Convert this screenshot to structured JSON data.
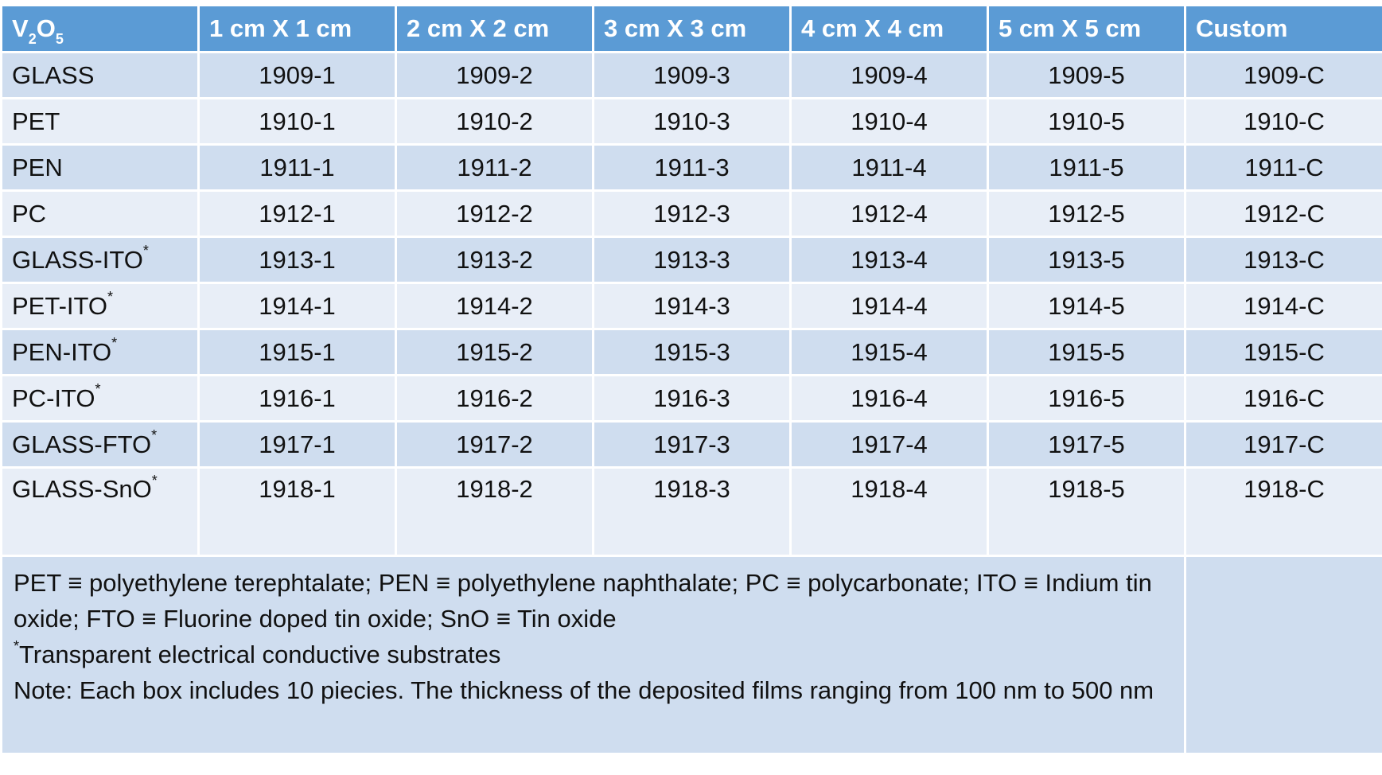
{
  "header": {
    "corner_main": "V",
    "corner_sub1": "2",
    "corner_mid": "O",
    "corner_sub2": "5",
    "columns": [
      "1 cm X 1 cm",
      "2 cm X 2 cm",
      "3 cm X 3 cm",
      "4 cm X 4 cm",
      "5 cm X 5 cm",
      "Custom"
    ]
  },
  "rows": [
    {
      "material": "GLASS",
      "mark": "",
      "codes": [
        "1909-1",
        "1909-2",
        "1909-3",
        "1909-4",
        "1909-5",
        "1909-C"
      ]
    },
    {
      "material": "PET",
      "mark": "",
      "codes": [
        "1910-1",
        "1910-2",
        "1910-3",
        "1910-4",
        "1910-5",
        "1910-C"
      ]
    },
    {
      "material": "PEN",
      "mark": "",
      "codes": [
        "1911-1",
        "1911-2",
        "1911-3",
        "1911-4",
        "1911-5",
        "1911-C"
      ]
    },
    {
      "material": "PC",
      "mark": "",
      "codes": [
        "1912-1",
        "1912-2",
        "1912-3",
        "1912-4",
        "1912-5",
        "1912-C"
      ]
    },
    {
      "material": "GLASS-ITO",
      "mark": "*",
      "codes": [
        "1913-1",
        "1913-2",
        "1913-3",
        "1913-4",
        "1913-5",
        "1913-C"
      ]
    },
    {
      "material": "PET-ITO",
      "mark": "*",
      "codes": [
        "1914-1",
        "1914-2",
        "1914-3",
        "1914-4",
        "1914-5",
        "1914-C"
      ]
    },
    {
      "material": "PEN-ITO",
      "mark": "*",
      "codes": [
        "1915-1",
        "1915-2",
        "1915-3",
        "1915-4",
        "1915-5",
        "1915-C"
      ]
    },
    {
      "material": "PC-ITO",
      "mark": "*",
      "codes": [
        "1916-1",
        "1916-2",
        "1916-3",
        "1916-4",
        "1916-5",
        "1916-C"
      ]
    },
    {
      "material": "GLASS-FTO",
      "mark": "*",
      "codes": [
        "1917-1",
        "1917-2",
        "1917-3",
        "1917-4",
        "1917-5",
        "1917-C"
      ]
    },
    {
      "material": "GLASS-SnO",
      "mark": "*",
      "codes": [
        "1918-1",
        "1918-2",
        "1918-3",
        "1918-4",
        "1918-5",
        "1918-C"
      ]
    }
  ],
  "notes": {
    "abbreviations": "PET ≡ polyethylene terephtalate; PEN ≡ polyethylene naphthalate; PC ≡ polycarbonate; ITO ≡ Indium tin oxide; FTO ≡ Fluorine doped tin oxide; SnO ≡ Tin oxide",
    "footnote_mark": "*",
    "footnote_text": "Transparent electrical conductive substrates",
    "note": "Note: Each box includes 10 piecies. The thickness of the deposited films ranging from 100 nm to 500 nm"
  },
  "colors": {
    "header_bg": "#5b9bd5",
    "row_dark": "#cfddef",
    "row_light": "#e8eef7"
  }
}
